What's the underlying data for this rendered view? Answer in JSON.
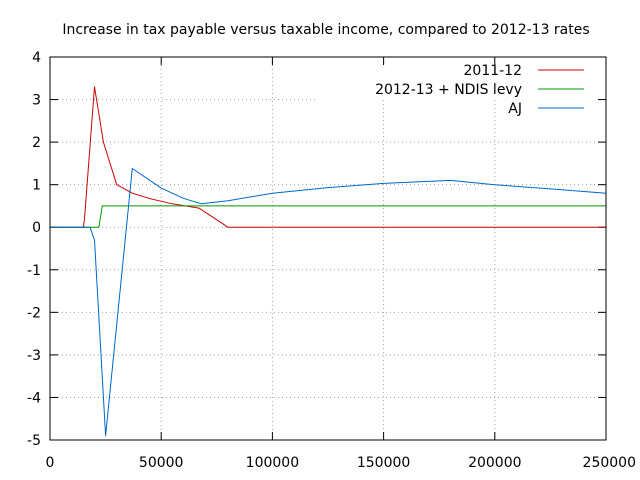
{
  "chart_data": {
    "type": "line",
    "title": "Increase in tax payable versus taxable income, compared to 2012-13 rates",
    "xlabel": "",
    "ylabel": "",
    "xlim": [
      0,
      250000
    ],
    "ylim": [
      -5,
      4
    ],
    "x_ticks": [
      0,
      50000,
      100000,
      150000,
      200000,
      250000
    ],
    "x_tick_labels": [
      "0",
      "50000",
      "100000",
      "150000",
      "200000",
      "250000"
    ],
    "y_ticks": [
      -5,
      -4,
      -3,
      -2,
      -1,
      0,
      1,
      2,
      3,
      4
    ],
    "y_tick_labels": [
      "-5",
      "-4",
      "-3",
      "-2",
      "-1",
      "0",
      "1",
      "2",
      "3",
      "4"
    ],
    "grid": true,
    "legend_position": "top-right",
    "series": [
      {
        "name": "2011-12",
        "color": "#cc0000",
        "x": [
          0,
          15000,
          15500,
          20000,
          24000,
          30000,
          37000,
          45000,
          55000,
          67000,
          80000,
          100000,
          150000,
          200000,
          250000
        ],
        "y": [
          0,
          0,
          0.2,
          3.3,
          2.0,
          1.0,
          0.8,
          0.67,
          0.55,
          0.45,
          0.0,
          0.0,
          0.0,
          0.0,
          0.0
        ]
      },
      {
        "name": "2012-13 + NDIS levy",
        "color": "#009900",
        "x": [
          0,
          22000,
          23500,
          100000,
          150000,
          200000,
          250000
        ],
        "y": [
          0,
          0,
          0.5,
          0.5,
          0.5,
          0.5,
          0.5
        ]
      },
      {
        "name": "AJ",
        "color": "#0066cc",
        "x": [
          0,
          18000,
          20000,
          25000,
          37000,
          50000,
          60000,
          68000,
          80000,
          100000,
          125000,
          150000,
          180000,
          200000,
          225000,
          250000
        ],
        "y": [
          0,
          0,
          -0.3,
          -4.9,
          1.38,
          0.92,
          0.68,
          0.55,
          0.62,
          0.8,
          0.93,
          1.03,
          1.1,
          1.0,
          0.9,
          0.8
        ]
      }
    ]
  }
}
